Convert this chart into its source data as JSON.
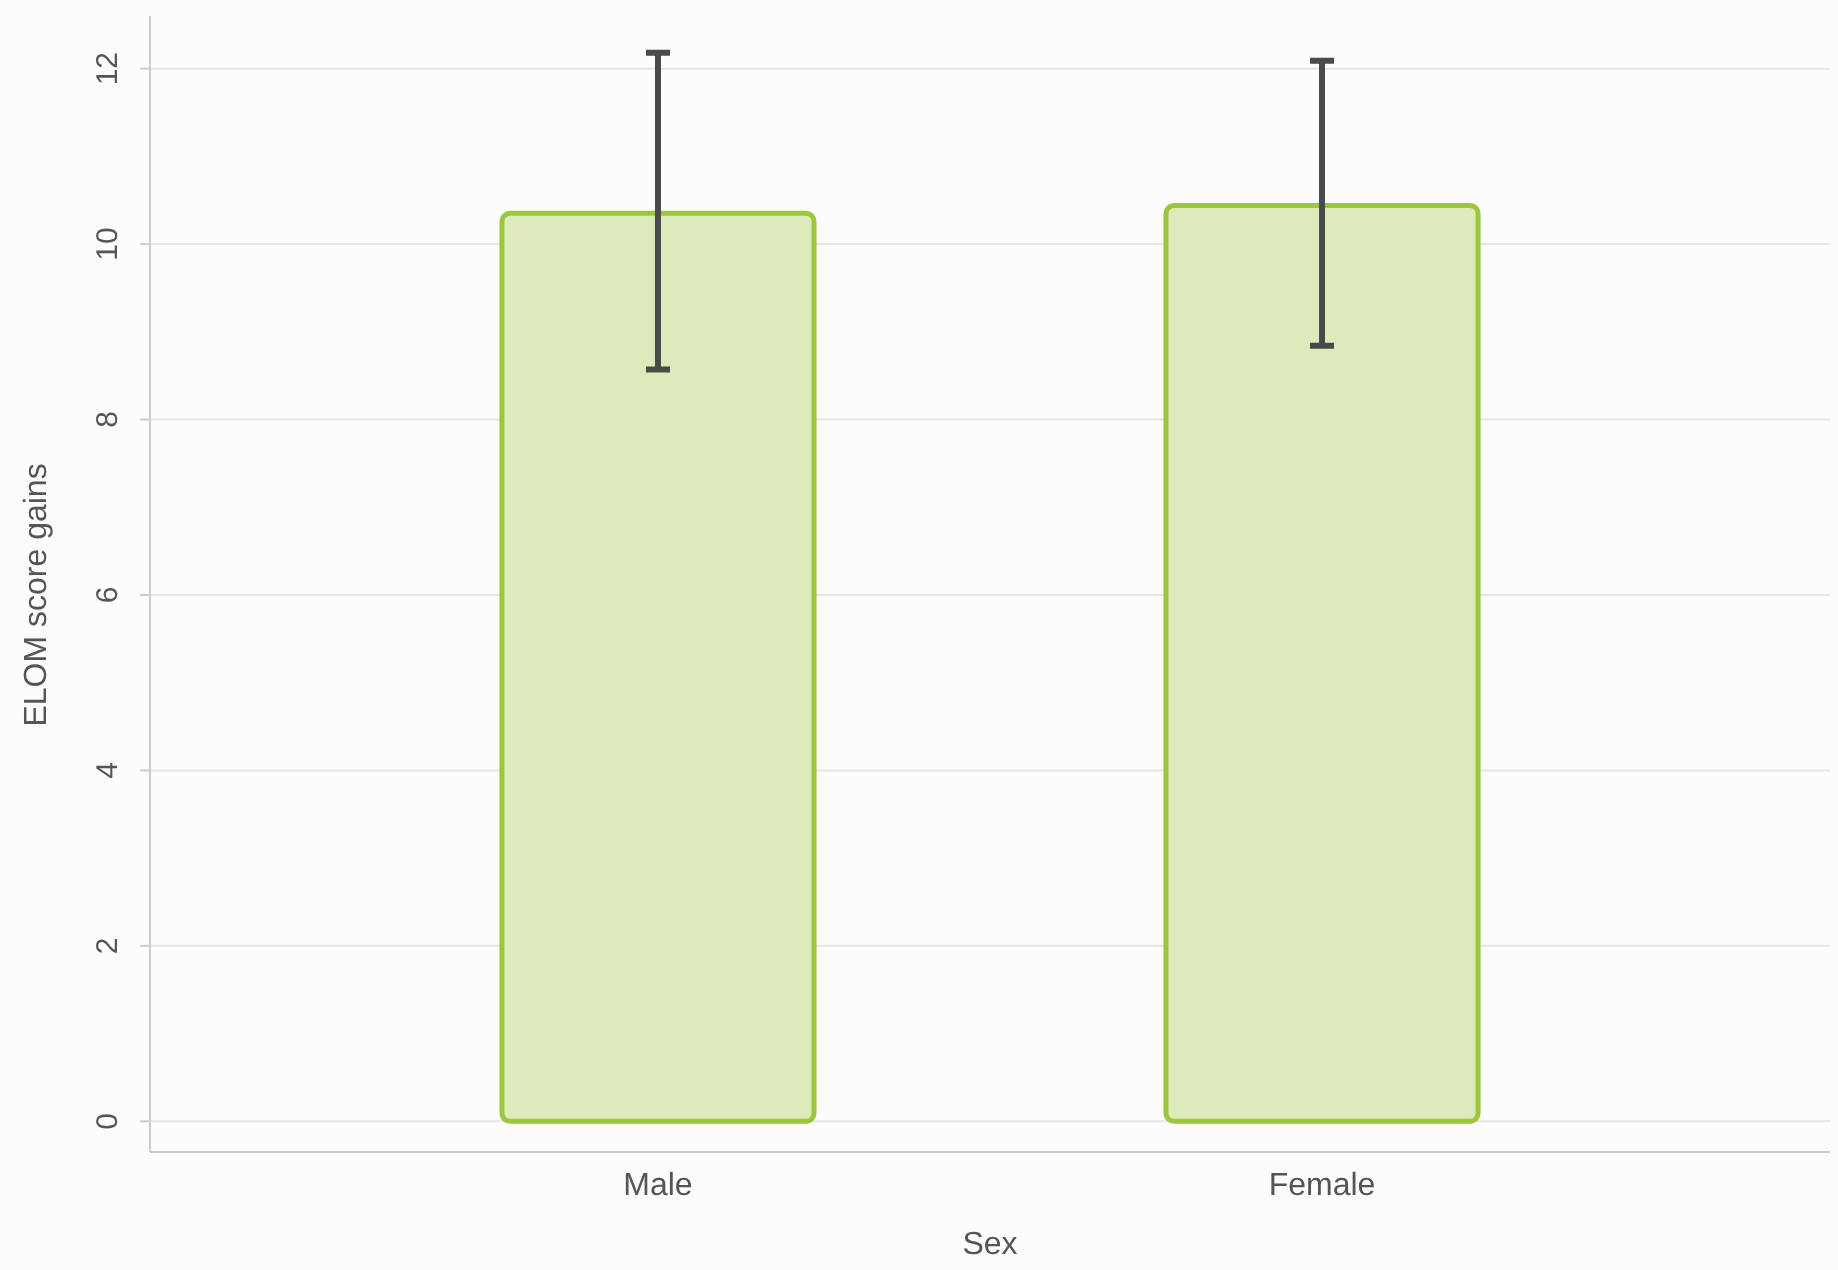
{
  "chart_data": {
    "type": "bar",
    "xlabel": "Sex",
    "ylabel": "ELOM score gains",
    "categories": [
      "Male",
      "Female"
    ],
    "values": [
      10.35,
      10.44
    ],
    "errors": [
      [
        8.57,
        12.18
      ],
      [
        8.84,
        12.09
      ]
    ],
    "color": "#9dc63f",
    "ylim": [
      -0.35,
      12.6
    ],
    "yticks": [
      0,
      2,
      4,
      6,
      8,
      10,
      12
    ],
    "grid": "y"
  }
}
